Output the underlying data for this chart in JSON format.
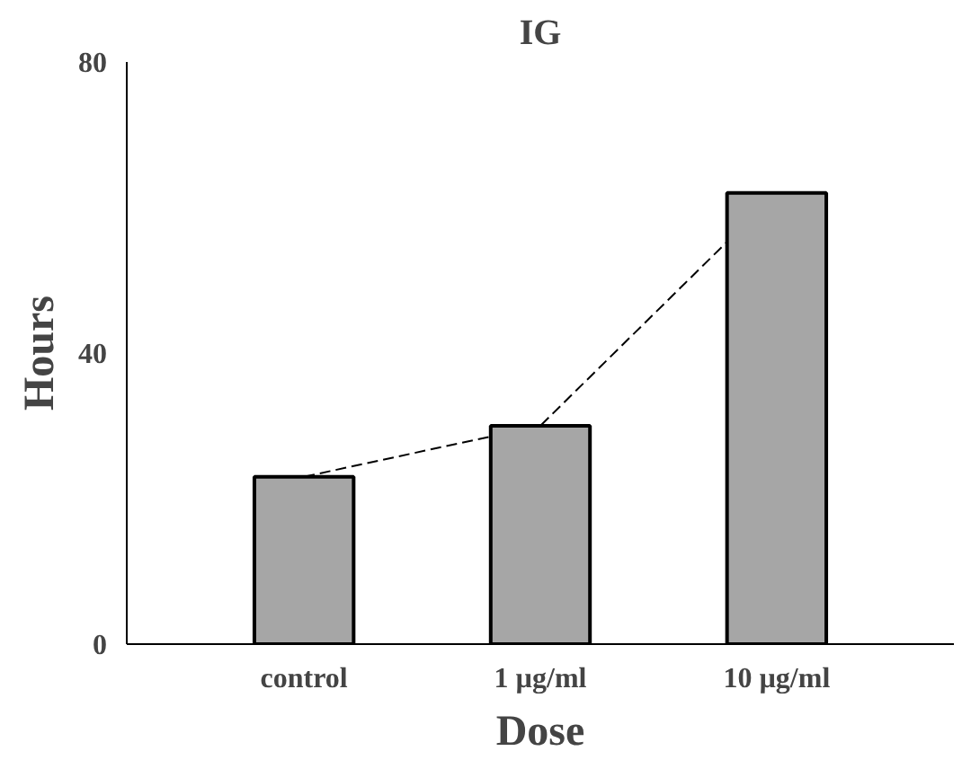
{
  "chart_data": {
    "type": "bar",
    "title": "IG",
    "xlabel": "Dose",
    "ylabel": "Hours",
    "categories": [
      "control",
      "1 µg/ml",
      "10 µg/ml"
    ],
    "series": [
      {
        "color": "#a6a6a6",
        "values": [
          23,
          30,
          62
        ]
      },
      {
        "type": "line",
        "color": "#000000",
        "line_style": "dashed",
        "values": [
          23,
          30,
          62
        ]
      }
    ],
    "ylim": [
      0,
      80
    ],
    "yticks": [
      0,
      40,
      80
    ],
    "grid": false
  }
}
